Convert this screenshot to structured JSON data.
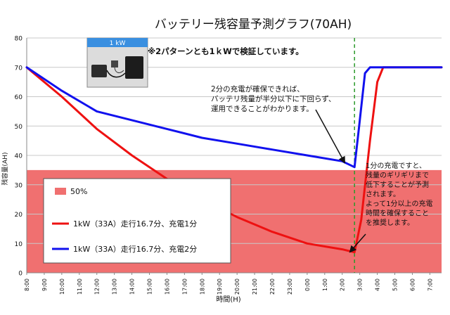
{
  "chart_data": {
    "type": "line",
    "title": "バッテリー残容量予測グラフ(70AH)",
    "xlabel": "時間(H)",
    "ylabel": "残容量(AH)",
    "ylim": [
      0,
      80
    ],
    "yticks": [
      0,
      10,
      20,
      30,
      40,
      50,
      60,
      70,
      80
    ],
    "xlim": [
      "8:00",
      "7:40"
    ],
    "xticks": [
      "8:00",
      "9:00",
      "10:00",
      "11:00",
      "12:00",
      "13:00",
      "14:00",
      "15:00",
      "16:00",
      "17:00",
      "18:00",
      "19:00",
      "20:00",
      "21:00",
      "22:00",
      "23:00",
      "0:00",
      "1:00",
      "2:00",
      "3:00",
      "4:00",
      "5:00",
      "6:00",
      "7:00"
    ],
    "grid": "horizontal",
    "threshold": {
      "name": "50%",
      "value": 35,
      "color": "#f07070"
    },
    "marker_line": {
      "x": "2:42",
      "color": "#2a9a2a"
    },
    "series": [
      {
        "name": "1kW（33A）走行16.7分、充電1分",
        "color": "#ee1111",
        "points": [
          [
            "8:00",
            70
          ],
          [
            "10:00",
            60
          ],
          [
            "12:00",
            49
          ],
          [
            "14:00",
            40
          ],
          [
            "16:00",
            32
          ],
          [
            "18:00",
            25
          ],
          [
            "20:00",
            19
          ],
          [
            "22:00",
            14
          ],
          [
            "0:00",
            10
          ],
          [
            "2:00",
            8
          ],
          [
            "2:42",
            7
          ],
          [
            "3:05",
            18
          ],
          [
            "3:35",
            45
          ],
          [
            "4:00",
            65
          ],
          [
            "4:20",
            70
          ],
          [
            "7:40",
            70
          ]
        ]
      },
      {
        "name": "1kW（33A）走行16.7分、充電2分",
        "color": "#1111ee",
        "points": [
          [
            "8:00",
            70
          ],
          [
            "10:00",
            62
          ],
          [
            "12:00",
            55
          ],
          [
            "14:00",
            52
          ],
          [
            "16:00",
            49
          ],
          [
            "18:00",
            46
          ],
          [
            "20:00",
            44
          ],
          [
            "22:00",
            42
          ],
          [
            "0:00",
            40
          ],
          [
            "2:00",
            38
          ],
          [
            "2:42",
            36
          ],
          [
            "2:58",
            50
          ],
          [
            "3:18",
            68
          ],
          [
            "3:35",
            70
          ],
          [
            "7:40",
            70
          ]
        ]
      }
    ],
    "annotations": [
      {
        "lines": [
          "2分の充電が確保できれば、",
          "バッテリ残量が半分以下に下回らず、",
          "運用できることがわかります。"
        ]
      },
      {
        "lines": [
          "1分の充電ですと、",
          "残量のギリギリまで",
          "低下することが予測",
          "されます。",
          "よって1分以上の充電",
          "時間を確保すること",
          "を推奨します。"
        ]
      }
    ]
  },
  "note": {
    "text": "※2パターンとも1ｋWで検証しています。"
  },
  "photo": {
    "label": "1 kW"
  }
}
